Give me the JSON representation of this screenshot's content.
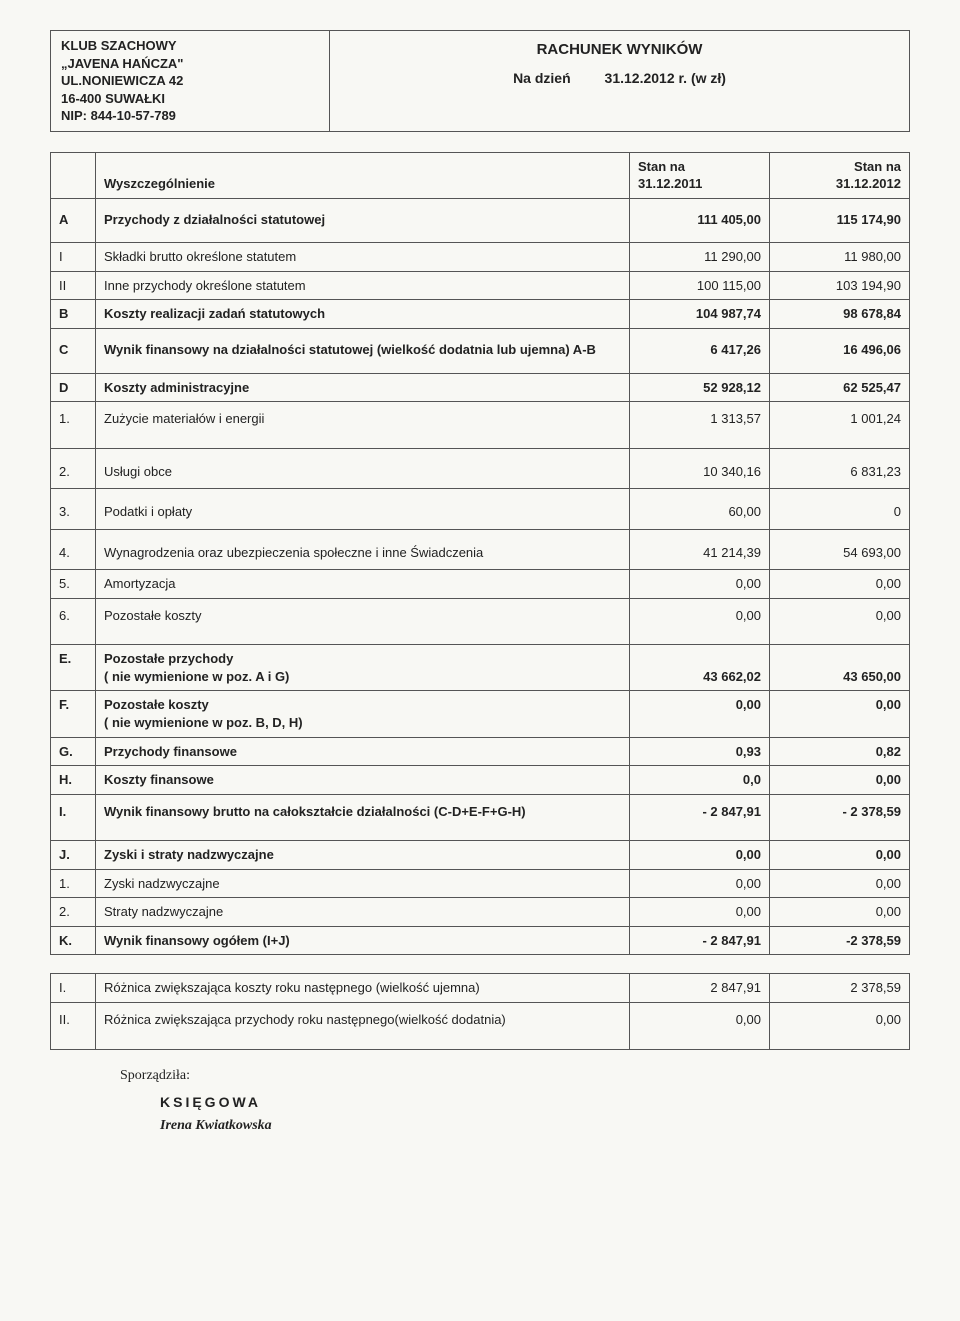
{
  "org": {
    "line1": "KLUB SZACHOWY",
    "line2": "„JAVENA HAŃCZA\"",
    "line3": "UL.NONIEWICZA 42",
    "line4": "16-400 SUWAŁKI",
    "line5": "NIP: 844-10-57-789"
  },
  "titleBlock": {
    "title": "RACHUNEK WYNIKÓW",
    "dateLabel": "Na dzień",
    "dateValue": "31.12.2012 r. (w zł)"
  },
  "mainTable": {
    "headers": {
      "desc": "Wyszczególnienie",
      "col1_l1": "Stan na",
      "col1_l2": "31.12.2011",
      "col2_l1": "Stan na",
      "col2_l2": "31.12.2012"
    },
    "rows": [
      {
        "id": "A",
        "label": "Przychody z działalności statutowej",
        "v1": "111 405,00",
        "v2": "115 174,90",
        "bold": true,
        "pad": "tall"
      },
      {
        "id": "I",
        "label": "Składki brutto określone  statutem",
        "v1": "11 290,00",
        "v2": "11 980,00"
      },
      {
        "id": "II",
        "label": "Inne przychody określone statutem",
        "v1": "100 115,00",
        "v2": "103 194,90"
      },
      {
        "id": "B",
        "label": "Koszty realizacji zadań statutowych",
        "v1": "104 987,74",
        "v2": "98 678,84",
        "bold": true
      },
      {
        "id": "C",
        "label": "Wynik finansowy na działalności statutowej (wielkość dodatnia lub ujemna) A-B",
        "v1": "6 417,26",
        "v2": "16 496,06",
        "bold": true,
        "pad": "tall"
      },
      {
        "id": "D",
        "label": "Koszty administracyjne",
        "v1": "52 928,12",
        "v2": "62 525,47",
        "bold": true,
        "valign": "bottom"
      },
      {
        "id": "1.",
        "label": "Zużycie materiałów i energii",
        "v1": "1 313,57",
        "v2": "1 001,24",
        "pad": "med"
      },
      {
        "id": "2.",
        "label": "Usługi obce",
        "v1": "10 340,16",
        "v2": "6 831,23",
        "pad": "med-top"
      },
      {
        "id": "3.",
        "label": "Podatki i opłaty",
        "v1": "60,00",
        "v2": "0",
        "pad": "med-top"
      },
      {
        "id": "4.",
        "label": "Wynagrodzenia oraz ubezpieczenia społeczne i inne Świadczenia",
        "v1": "41 214,39",
        "v2": "54 693,00",
        "pad": "med-top"
      },
      {
        "id": "5.",
        "label": "Amortyzacja",
        "v1": "0,00",
        "v2": "0,00"
      },
      {
        "id": "6.",
        "label": "Pozostałe  koszty",
        "v1": "0,00",
        "v2": "0,00",
        "pad": "med"
      },
      {
        "id": "E.",
        "label": "Pozostałe przychody\n( nie wymienione w poz. A i G)",
        "v1": "43 662,02",
        "v2": "43 650,00",
        "bold": true,
        "valign": "bottom"
      },
      {
        "id": "F.",
        "label": "Pozostałe koszty\n( nie wymienione w poz. B, D, H)",
        "v1": "0,00",
        "v2": "0,00",
        "bold": true
      },
      {
        "id": "G.",
        "label": "Przychody finansowe",
        "v1": "0,93",
        "v2": "0,82",
        "bold": true
      },
      {
        "id": "H.",
        "label": "Koszty finansowe",
        "v1": "0,0",
        "v2": "0,00",
        "bold": true
      },
      {
        "id": "I.",
        "label": "Wynik finansowy brutto na całokształcie działalności    (C-D+E-F+G-H)",
        "v1": "- 2 847,91",
        "v2": "- 2 378,59",
        "bold": true,
        "pad": "med"
      },
      {
        "id": "J.",
        "label": "Zyski i straty nadzwyczajne",
        "v1": "0,00",
        "v2": "0,00",
        "bold": true
      },
      {
        "id": "1.",
        "label": "Zyski nadzwyczajne",
        "v1": "0,00",
        "v2": "0,00"
      },
      {
        "id": "2.",
        "label": "Straty nadzwyczajne",
        "v1": "0,00",
        "v2": "0,00"
      },
      {
        "id": "K.",
        "label": "Wynik finansowy ogółem (I+J)",
        "v1": "- 2 847,91",
        "v2": "-2 378,59",
        "bold": true
      }
    ]
  },
  "secondTable": {
    "rows": [
      {
        "id": "I.",
        "label": "Różnica zwiększająca koszty roku następnego (wielkość ujemna)",
        "v1": "2 847,91",
        "v2": "2 378,59"
      },
      {
        "id": "II.",
        "label": "Różnica zwiększająca przychody roku następnego(wielkość dodatnia)",
        "v1": "0,00",
        "v2": "0,00",
        "pad": "med"
      }
    ]
  },
  "footer": {
    "label": "Sporządziła:",
    "role": "KSIĘGOWA",
    "name": "Irena Kwiatkowska"
  },
  "colors": {
    "border": "#555555",
    "bg": "#f8f8f4",
    "text": "#222222"
  }
}
